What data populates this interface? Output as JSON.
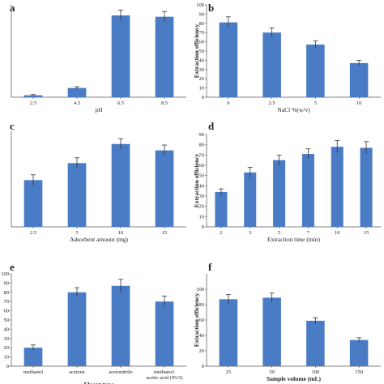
{
  "chart_data": [
    {
      "panel": "a",
      "type": "bar",
      "categories": [
        "2.5",
        "4.5",
        "6.5",
        "8.5"
      ],
      "values": [
        1.5,
        7,
        62,
        61
      ],
      "errors": [
        0.5,
        1,
        4,
        4
      ],
      "xlabel": "pH",
      "ylabel": "",
      "ylim": [
        0,
        70
      ],
      "ytick_labels": []
    },
    {
      "panel": "b",
      "type": "bar",
      "categories": [
        "0",
        "2.5",
        "5",
        "10"
      ],
      "values": [
        81,
        70,
        57,
        37
      ],
      "errors": [
        6,
        5,
        4,
        3
      ],
      "xlabel": "NaCl %(w/v)",
      "ylabel": "Extraction efficiency",
      "ylim": [
        0,
        100
      ],
      "yticks": [
        0,
        10,
        20,
        30,
        40,
        50,
        60,
        70,
        80,
        90,
        100
      ],
      "ytick_labels": [
        "0",
        "10",
        "20",
        "30",
        "40",
        "50",
        "60",
        "70",
        "80",
        "90",
        "100"
      ]
    },
    {
      "panel": "c",
      "type": "bar",
      "categories": [
        "2.5",
        "5",
        "10",
        "15"
      ],
      "values": [
        44,
        60,
        78,
        72
      ],
      "errors": [
        5,
        5,
        5,
        5
      ],
      "xlabel": "Adsorbent amount (mg)",
      "ylabel": "",
      "ylim": [
        0,
        90
      ],
      "ytick_labels": []
    },
    {
      "panel": "d",
      "type": "bar",
      "categories": [
        "2",
        "3",
        "5",
        "7",
        "10",
        "15"
      ],
      "values": [
        34,
        53,
        65,
        71,
        78,
        77
      ],
      "errors": [
        3,
        5,
        5,
        5,
        6,
        6
      ],
      "xlabel": "Extraction time (min)",
      "ylabel": "Extraction efficiency",
      "ylim": [
        0,
        90
      ],
      "yticks": [
        0,
        10,
        20,
        30,
        40,
        50,
        60,
        70,
        80,
        90
      ],
      "ytick_labels": [
        "0",
        "10",
        "20",
        "30",
        "40",
        "50",
        "60",
        "70",
        "80",
        "90"
      ]
    },
    {
      "panel": "e",
      "type": "bar",
      "categories": [
        "methanol",
        "acetone",
        "acetonitrile",
        "methanol:\nacetic acid (95:5)"
      ],
      "values": [
        20,
        80,
        87,
        70
      ],
      "errors": [
        3,
        5,
        7,
        6
      ],
      "xlabel": "Eluent type",
      "ylabel": "",
      "ylim": [
        0,
        100
      ],
      "yticks": [
        0,
        10,
        20,
        30,
        40,
        50,
        60,
        70,
        80,
        90,
        100
      ],
      "ytick_labels": [
        "0",
        "10",
        "20",
        "30",
        "40",
        "50",
        "60",
        "70",
        "80",
        "90",
        "100"
      ]
    },
    {
      "panel": "f",
      "type": "bar",
      "categories": [
        "25",
        "50",
        "100",
        "150"
      ],
      "values": [
        87,
        89,
        59,
        34
      ],
      "errors": [
        6,
        6,
        4,
        3
      ],
      "xlabel": "Sample volume (mL)",
      "ylabel": "Extraction efficiency",
      "ylim": [
        0,
        120
      ],
      "yticks": [
        0,
        20,
        40,
        60,
        80,
        100
      ],
      "ytick_labels": [
        "0",
        "20",
        "40",
        "60",
        "80",
        "100"
      ]
    }
  ]
}
